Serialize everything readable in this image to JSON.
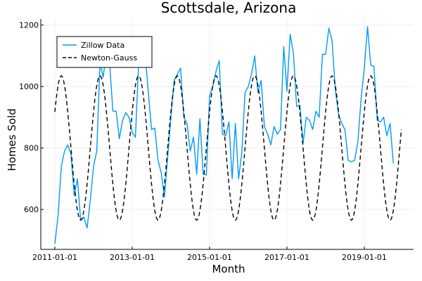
{
  "chart_data": {
    "type": "line",
    "title": "Scottsdale, Arizona",
    "xlabel": "Month",
    "ylabel": "Homes Sold",
    "x_start": "2011-01-01",
    "x_ticks": [
      "2011-01-01",
      "2013-01-01",
      "2015-01-01",
      "2017-01-01",
      "2019-01-01"
    ],
    "y_ticks": [
      600,
      800,
      1000,
      1200
    ],
    "ylim": [
      470,
      1220
    ],
    "grid": true,
    "legend_position": "top-left",
    "series": [
      {
        "name": "Zillow Data",
        "style": "solid",
        "color": "#009AFA",
        "values": [
          488,
          580,
          740,
          790,
          810,
          780,
          645,
          700,
          565,
          575,
          540,
          630,
          740,
          790,
          1080,
          1030,
          1120,
          1075,
          920,
          920,
          830,
          890,
          915,
          900,
          850,
          835,
          1080,
          1100,
          1110,
          980,
          860,
          865,
          760,
          720,
          640,
          770,
          900,
          1020,
          1040,
          1060,
          900,
          880,
          790,
          835,
          715,
          895,
          715,
          712,
          970,
          1000,
          1050,
          1085,
          845,
          840,
          885,
          700,
          880,
          700,
          785,
          980,
          1000,
          1040,
          1100,
          980,
          1020,
          870,
          845,
          810,
          870,
          845,
          860,
          1130,
          985,
          1170,
          1110,
          935,
          940,
          815,
          900,
          890,
          860,
          920,
          900,
          1105,
          1105,
          1190,
          1150,
          990,
          910,
          880,
          860,
          760,
          755,
          760,
          820,
          960,
          1060,
          1195,
          1070,
          1065,
          890,
          885,
          900,
          840,
          880,
          750
        ]
      },
      {
        "name": "Newton-Gauss",
        "style": "dashed",
        "color": "#000000",
        "function": "800 + 235 * sin(2π(t+1)/12)"
      }
    ]
  }
}
